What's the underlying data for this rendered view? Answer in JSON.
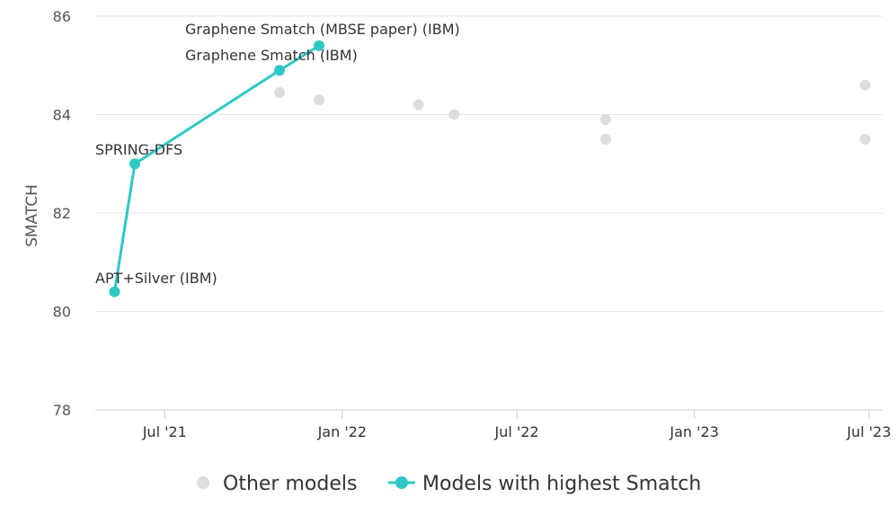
{
  "chart_data": {
    "type": "scatter",
    "title": "",
    "xlabel": "",
    "ylabel": "SMATCH",
    "ylim": [
      78,
      86
    ],
    "y_ticks": [
      "78",
      "80",
      "82",
      "84",
      "86"
    ],
    "x_ticks": [
      {
        "label": "Jul '21",
        "date": "2021-07-01"
      },
      {
        "label": "Jan '22",
        "date": "2022-01-01"
      },
      {
        "label": "Jul '22",
        "date": "2022-07-01"
      },
      {
        "label": "Jan '23",
        "date": "2023-01-01"
      },
      {
        "label": "Jul '23",
        "date": "2023-07-01"
      }
    ],
    "xlim": [
      "2021-04-20",
      "2023-07-15"
    ],
    "grid": true,
    "legend_position": "bottom",
    "series": [
      {
        "name": "Other models",
        "color": "#dddddd",
        "kind": "points",
        "points": [
          {
            "date": "2021-10-28",
            "y": 84.45
          },
          {
            "date": "2021-12-08",
            "y": 84.3
          },
          {
            "date": "2022-03-21",
            "y": 84.2
          },
          {
            "date": "2022-04-27",
            "y": 84.0
          },
          {
            "date": "2022-10-01",
            "y": 83.9
          },
          {
            "date": "2022-10-01",
            "y": 83.5
          },
          {
            "date": "2023-06-27",
            "y": 84.6
          },
          {
            "date": "2023-06-27",
            "y": 83.5
          }
        ]
      },
      {
        "name": "Models with highest Smatch",
        "color": "#2ec8c5",
        "kind": "line",
        "points": [
          {
            "date": "2021-05-10",
            "y": 80.4,
            "label": "APT+Silver (IBM)"
          },
          {
            "date": "2021-05-31",
            "y": 83.0,
            "label": "SPRING-DFS"
          },
          {
            "date": "2021-10-28",
            "y": 84.9,
            "label": "Graphene Smatch (IBM)"
          },
          {
            "date": "2021-12-08",
            "y": 85.4,
            "label": "Graphene Smatch (MBSE paper) (IBM)"
          }
        ]
      }
    ]
  }
}
